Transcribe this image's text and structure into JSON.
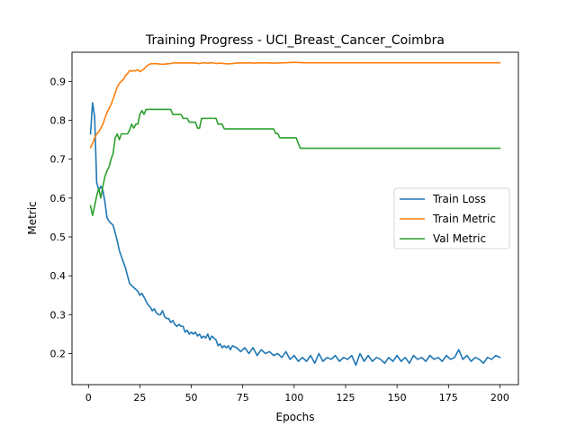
{
  "chart_data": {
    "type": "line",
    "title": "Training Progress - UCI_Breast_Cancer_Coimbra",
    "xlabel": "Epochs",
    "ylabel": "Metric",
    "xlim": [
      -8,
      209
    ],
    "ylim": [
      0.12,
      0.975
    ],
    "xticks": [
      0,
      25,
      50,
      75,
      100,
      125,
      150,
      175,
      200
    ],
    "yticks": [
      0.2,
      0.3,
      0.4,
      0.5,
      0.6,
      0.7,
      0.8,
      0.9
    ],
    "grid": false,
    "legend_position": "center-right",
    "series": [
      {
        "name": "Train Loss",
        "color": "#1f77b4",
        "points": [
          [
            1,
            0.765
          ],
          [
            2,
            0.845
          ],
          [
            3,
            0.81
          ],
          [
            4,
            0.64
          ],
          [
            5,
            0.62
          ],
          [
            6,
            0.63
          ],
          [
            7,
            0.62
          ],
          [
            8,
            0.59
          ],
          [
            9,
            0.55
          ],
          [
            10,
            0.54
          ],
          [
            11,
            0.535
          ],
          [
            12,
            0.53
          ],
          [
            13,
            0.51
          ],
          [
            14,
            0.49
          ],
          [
            15,
            0.465
          ],
          [
            16,
            0.45
          ],
          [
            17,
            0.435
          ],
          [
            18,
            0.42
          ],
          [
            19,
            0.4
          ],
          [
            20,
            0.38
          ],
          [
            21,
            0.375
          ],
          [
            22,
            0.37
          ],
          [
            23,
            0.365
          ],
          [
            24,
            0.36
          ],
          [
            25,
            0.35
          ],
          [
            26,
            0.355
          ],
          [
            27,
            0.345
          ],
          [
            28,
            0.335
          ],
          [
            29,
            0.325
          ],
          [
            30,
            0.32
          ],
          [
            31,
            0.31
          ],
          [
            32,
            0.315
          ],
          [
            33,
            0.305
          ],
          [
            34,
            0.3
          ],
          [
            35,
            0.3
          ],
          [
            36,
            0.31
          ],
          [
            37,
            0.295
          ],
          [
            38,
            0.29
          ],
          [
            39,
            0.29
          ],
          [
            40,
            0.28
          ],
          [
            41,
            0.285
          ],
          [
            42,
            0.275
          ],
          [
            43,
            0.27
          ],
          [
            44,
            0.275
          ],
          [
            45,
            0.27
          ],
          [
            46,
            0.27
          ],
          [
            47,
            0.255
          ],
          [
            48,
            0.26
          ],
          [
            49,
            0.25
          ],
          [
            50,
            0.255
          ],
          [
            51,
            0.25
          ],
          [
            52,
            0.255
          ],
          [
            53,
            0.245
          ],
          [
            54,
            0.25
          ],
          [
            55,
            0.24
          ],
          [
            56,
            0.245
          ],
          [
            57,
            0.24
          ],
          [
            58,
            0.25
          ],
          [
            59,
            0.235
          ],
          [
            60,
            0.245
          ],
          [
            61,
            0.24
          ],
          [
            62,
            0.235
          ],
          [
            63,
            0.22
          ],
          [
            64,
            0.225
          ],
          [
            65,
            0.215
          ],
          [
            66,
            0.22
          ],
          [
            67,
            0.215
          ],
          [
            68,
            0.22
          ],
          [
            69,
            0.21
          ],
          [
            70,
            0.22
          ],
          [
            72,
            0.215
          ],
          [
            74,
            0.205
          ],
          [
            76,
            0.215
          ],
          [
            78,
            0.2
          ],
          [
            80,
            0.215
          ],
          [
            82,
            0.195
          ],
          [
            84,
            0.21
          ],
          [
            86,
            0.2
          ],
          [
            88,
            0.205
          ],
          [
            90,
            0.195
          ],
          [
            92,
            0.2
          ],
          [
            94,
            0.19
          ],
          [
            96,
            0.205
          ],
          [
            98,
            0.185
          ],
          [
            100,
            0.195
          ],
          [
            102,
            0.18
          ],
          [
            104,
            0.19
          ],
          [
            106,
            0.18
          ],
          [
            108,
            0.195
          ],
          [
            110,
            0.175
          ],
          [
            112,
            0.2
          ],
          [
            114,
            0.18
          ],
          [
            116,
            0.19
          ],
          [
            118,
            0.185
          ],
          [
            120,
            0.195
          ],
          [
            122,
            0.18
          ],
          [
            124,
            0.19
          ],
          [
            126,
            0.185
          ],
          [
            128,
            0.195
          ],
          [
            130,
            0.17
          ],
          [
            132,
            0.2
          ],
          [
            134,
            0.18
          ],
          [
            136,
            0.195
          ],
          [
            138,
            0.18
          ],
          [
            140,
            0.19
          ],
          [
            142,
            0.185
          ],
          [
            144,
            0.175
          ],
          [
            146,
            0.19
          ],
          [
            148,
            0.18
          ],
          [
            150,
            0.195
          ],
          [
            152,
            0.18
          ],
          [
            154,
            0.19
          ],
          [
            156,
            0.175
          ],
          [
            158,
            0.195
          ],
          [
            160,
            0.185
          ],
          [
            162,
            0.19
          ],
          [
            164,
            0.18
          ],
          [
            166,
            0.195
          ],
          [
            168,
            0.185
          ],
          [
            170,
            0.19
          ],
          [
            172,
            0.18
          ],
          [
            174,
            0.195
          ],
          [
            176,
            0.185
          ],
          [
            178,
            0.19
          ],
          [
            180,
            0.21
          ],
          [
            182,
            0.185
          ],
          [
            184,
            0.195
          ],
          [
            186,
            0.18
          ],
          [
            188,
            0.19
          ],
          [
            190,
            0.185
          ],
          [
            192,
            0.175
          ],
          [
            194,
            0.19
          ],
          [
            196,
            0.185
          ],
          [
            198,
            0.195
          ],
          [
            200,
            0.19
          ]
        ]
      },
      {
        "name": "Train Metric",
        "color": "#ff7f0e",
        "points": [
          [
            1,
            0.73
          ],
          [
            2,
            0.74
          ],
          [
            3,
            0.755
          ],
          [
            4,
            0.765
          ],
          [
            5,
            0.77
          ],
          [
            6,
            0.78
          ],
          [
            7,
            0.79
          ],
          [
            8,
            0.805
          ],
          [
            9,
            0.82
          ],
          [
            10,
            0.83
          ],
          [
            11,
            0.84
          ],
          [
            12,
            0.855
          ],
          [
            13,
            0.87
          ],
          [
            14,
            0.885
          ],
          [
            15,
            0.895
          ],
          [
            16,
            0.9
          ],
          [
            17,
            0.905
          ],
          [
            18,
            0.915
          ],
          [
            19,
            0.92
          ],
          [
            20,
            0.928
          ],
          [
            21,
            0.926
          ],
          [
            22,
            0.928
          ],
          [
            23,
            0.927
          ],
          [
            24,
            0.93
          ],
          [
            25,
            0.925
          ],
          [
            26,
            0.928
          ],
          [
            27,
            0.932
          ],
          [
            28,
            0.938
          ],
          [
            29,
            0.942
          ],
          [
            30,
            0.945
          ],
          [
            32,
            0.946
          ],
          [
            34,
            0.945
          ],
          [
            36,
            0.944
          ],
          [
            38,
            0.945
          ],
          [
            40,
            0.946
          ],
          [
            42,
            0.948
          ],
          [
            44,
            0.947
          ],
          [
            46,
            0.948
          ],
          [
            48,
            0.947
          ],
          [
            50,
            0.948
          ],
          [
            52,
            0.947
          ],
          [
            54,
            0.946
          ],
          [
            56,
            0.948
          ],
          [
            58,
            0.947
          ],
          [
            60,
            0.948
          ],
          [
            62,
            0.946
          ],
          [
            64,
            0.947
          ],
          [
            66,
            0.946
          ],
          [
            68,
            0.945
          ],
          [
            70,
            0.946
          ],
          [
            72,
            0.947
          ],
          [
            74,
            0.948
          ],
          [
            76,
            0.947
          ],
          [
            78,
            0.948
          ],
          [
            80,
            0.947
          ],
          [
            85,
            0.948
          ],
          [
            90,
            0.947
          ],
          [
            95,
            0.948
          ],
          [
            100,
            0.949
          ],
          [
            105,
            0.948
          ],
          [
            110,
            0.948
          ],
          [
            120,
            0.948
          ],
          [
            130,
            0.948
          ],
          [
            140,
            0.948
          ],
          [
            150,
            0.948
          ],
          [
            160,
            0.948
          ],
          [
            170,
            0.948
          ],
          [
            180,
            0.948
          ],
          [
            190,
            0.948
          ],
          [
            200,
            0.948
          ]
        ]
      },
      {
        "name": "Val Metric",
        "color": "#2ca02c",
        "points": [
          [
            1,
            0.58
          ],
          [
            2,
            0.555
          ],
          [
            3,
            0.58
          ],
          [
            4,
            0.605
          ],
          [
            5,
            0.625
          ],
          [
            6,
            0.6
          ],
          [
            7,
            0.63
          ],
          [
            8,
            0.655
          ],
          [
            9,
            0.67
          ],
          [
            10,
            0.68
          ],
          [
            11,
            0.7
          ],
          [
            12,
            0.715
          ],
          [
            13,
            0.755
          ],
          [
            14,
            0.765
          ],
          [
            15,
            0.75
          ],
          [
            16,
            0.765
          ],
          [
            17,
            0.765
          ],
          [
            18,
            0.765
          ],
          [
            19,
            0.765
          ],
          [
            20,
            0.775
          ],
          [
            21,
            0.79
          ],
          [
            22,
            0.78
          ],
          [
            23,
            0.79
          ],
          [
            24,
            0.79
          ],
          [
            25,
            0.815
          ],
          [
            26,
            0.825
          ],
          [
            27,
            0.815
          ],
          [
            28,
            0.828
          ],
          [
            30,
            0.828
          ],
          [
            35,
            0.828
          ],
          [
            40,
            0.828
          ],
          [
            41,
            0.815
          ],
          [
            45,
            0.815
          ],
          [
            46,
            0.805
          ],
          [
            48,
            0.805
          ],
          [
            49,
            0.795
          ],
          [
            52,
            0.795
          ],
          [
            53,
            0.78
          ],
          [
            54,
            0.78
          ],
          [
            55,
            0.805
          ],
          [
            60,
            0.805
          ],
          [
            62,
            0.805
          ],
          [
            63,
            0.79
          ],
          [
            65,
            0.79
          ],
          [
            66,
            0.778
          ],
          [
            70,
            0.778
          ],
          [
            80,
            0.778
          ],
          [
            90,
            0.778
          ],
          [
            91,
            0.766
          ],
          [
            92,
            0.766
          ],
          [
            93,
            0.755
          ],
          [
            100,
            0.755
          ],
          [
            101,
            0.755
          ],
          [
            102,
            0.74
          ],
          [
            103,
            0.728
          ],
          [
            120,
            0.728
          ],
          [
            140,
            0.728
          ],
          [
            160,
            0.728
          ],
          [
            180,
            0.728
          ],
          [
            200,
            0.728
          ]
        ]
      }
    ]
  }
}
